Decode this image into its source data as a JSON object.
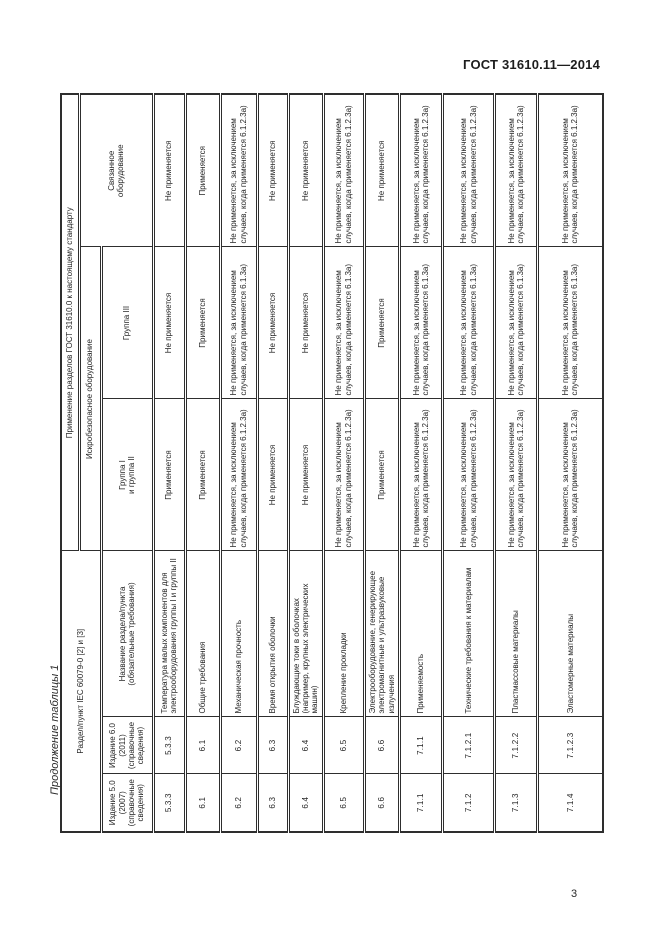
{
  "page": {
    "standard_ref": "ГОСТ 31610.11—2014",
    "table_caption": "Продолжение таблицы 1",
    "page_number": "3"
  },
  "table": {
    "header": {
      "section_col": "Раздел/пункт IEC 60079-0 [2] и [3]",
      "application": "Применение разделов ГОСТ 31610.0 к настоящему стандарту",
      "intrinsically_safe": "Искробезопасное оборудование",
      "associated": "Связанное\nоборудование",
      "edition50": "Издание 5.0\n(2007)\n(справочные\nсведения)",
      "edition60": "Издание 6.0\n(2011)\n(справочные\nсведения)",
      "section_name": "Название раздела/пункта\n(обязательные требования)",
      "group12": "Группа I\nи группа II",
      "group3": "Группа III"
    },
    "rows": [
      {
        "ed50": "5.3.3",
        "ed60": "5.3.3",
        "name": "Температура малых компонентов для электрооборудования группы I и группы II",
        "g12": "Применяется",
        "g3": "Не применяется",
        "assoc": "Не применяется"
      },
      {
        "ed50": "6.1",
        "ed60": "6.1",
        "name": "Общие требования",
        "g12": "Применяется",
        "g3": "Применяется",
        "assoc": "Применяется"
      },
      {
        "ed50": "6.2",
        "ed60": "6.2",
        "name": "Механическая прочность",
        "g12": "Не применяется, за исключением случаев, когда применяется 6.1.2.3а)",
        "g3": "Не применяется, за исключением случаев, когда применяется 6.1.3а)",
        "assoc": "Не применяется, за исключением случаев, когда применяется 6.1.2.3а)"
      },
      {
        "ed50": "6.3",
        "ed60": "6.3",
        "name": "Время открытия оболочки",
        "g12": "Не применяется",
        "g3": "Не применяется",
        "assoc": "Не применяется"
      },
      {
        "ed50": "6.4",
        "ed60": "6.4",
        "name": "Блуждающие токи в оболочках (например, крупных электрических машин)",
        "g12": "Не применяется",
        "g3": "Не применяется",
        "assoc": "Не применяется"
      },
      {
        "ed50": "6.5",
        "ed60": "6.5",
        "name": "Крепление прокладки",
        "g12": "Не применяется, за исключением случаев, когда применяется 6.1.2.3а)",
        "g3": "Не применяется, за исключением случаев, когда применяется 6.1.3а)",
        "assoc": "Не применяется, за исключением случаев, когда применяется 6.1.2.3а)"
      },
      {
        "ed50": "6.6",
        "ed60": "6.6",
        "name": "Электрооборудование, генерирующее электромагнитные и ультразвуковые излучения",
        "g12": "Применяется",
        "g3": "Применяется",
        "assoc": "Не применяется"
      },
      {
        "ed50": "7.1.1",
        "ed60": "7.1.1",
        "name": "Применяемость",
        "g12": "Не применяется, за исключением случаев, когда применяется 6.1.2.3а)",
        "g3": "Не применяется, за исключением случаев, когда применяется 6.1.3а)",
        "assoc": "Не применяется, за исключением случаев, когда применяется 6.1.2.3а)"
      },
      {
        "ed50": "7.1.2",
        "ed60": "7.1.2.1",
        "name": "Технические требования к материалам",
        "g12": "Не применяется, за исключением случаев, когда применяется 6.1.2.3а)",
        "g3": "Не применяется, за исключением случаев, когда применяется 6.1.3а)",
        "assoc": "Не применяется, за исключением случаев, когда применяется 6.1.2.3а)"
      },
      {
        "ed50": "7.1.3",
        "ed60": "7.1.2.2",
        "name": "Пластмассовые материалы",
        "g12": "Не применяется, за исключением случаев, когда применяется 6.1.2.3а)",
        "g3": "Не применяется, за исключением случаев, когда применяется 6.1.3а)",
        "assoc": "Не применяется, за исключением случаев, когда применяется 6.1.2.3а)"
      },
      {
        "ed50": "7.1.4",
        "ed60": "7.1.2.3",
        "name": "Эластомерные материалы",
        "g12": "Не применяется, за исключением случаев, когда применяется 6.1.2.3а)",
        "g3": "Не применяется, за исключением случаев, когда применяется 6.1.3а)",
        "assoc": "Не применяется, за исключением случаев, когда применяется 6.1.2.3а)"
      }
    ]
  }
}
